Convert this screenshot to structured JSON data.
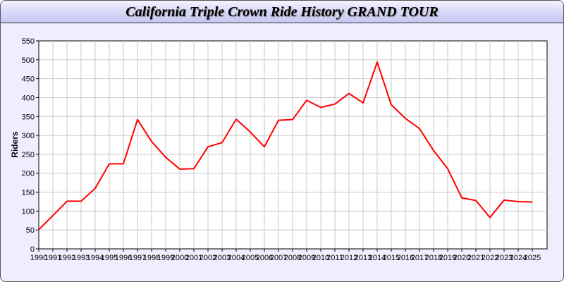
{
  "chart_data": {
    "type": "line",
    "title": "California Triple Crown Ride History GRAND TOUR",
    "xlabel": "",
    "ylabel": "Riders",
    "ylim": [
      0,
      550
    ],
    "yticks": [
      0,
      50,
      100,
      150,
      200,
      250,
      300,
      350,
      400,
      450,
      500,
      550
    ],
    "grid": true,
    "line_color": "#ff0000",
    "x": [
      "1990",
      "1991",
      "1992",
      "1993",
      "1994",
      "1995",
      "1996",
      "1997",
      "1998",
      "1999",
      "2000",
      "2001",
      "2002",
      "2003",
      "2004",
      "2005",
      "2006",
      "2007",
      "2008",
      "2009",
      "2010",
      "2011",
      "2012",
      "2013",
      "2014",
      "2015",
      "2016",
      "2017",
      "2018",
      "2019",
      "2020",
      "2021",
      "2022",
      "2023",
      "2024",
      "2025"
    ],
    "series": [
      {
        "values": [
          51,
          88,
          126,
          126,
          160,
          225,
          225,
          342,
          284,
          242,
          211,
          212,
          270,
          281,
          343,
          309,
          270,
          340,
          342,
          393,
          374,
          383,
          411,
          386,
          494,
          381,
          345,
          318,
          260,
          212,
          135,
          128,
          83,
          129,
          125,
          124
        ]
      }
    ]
  }
}
